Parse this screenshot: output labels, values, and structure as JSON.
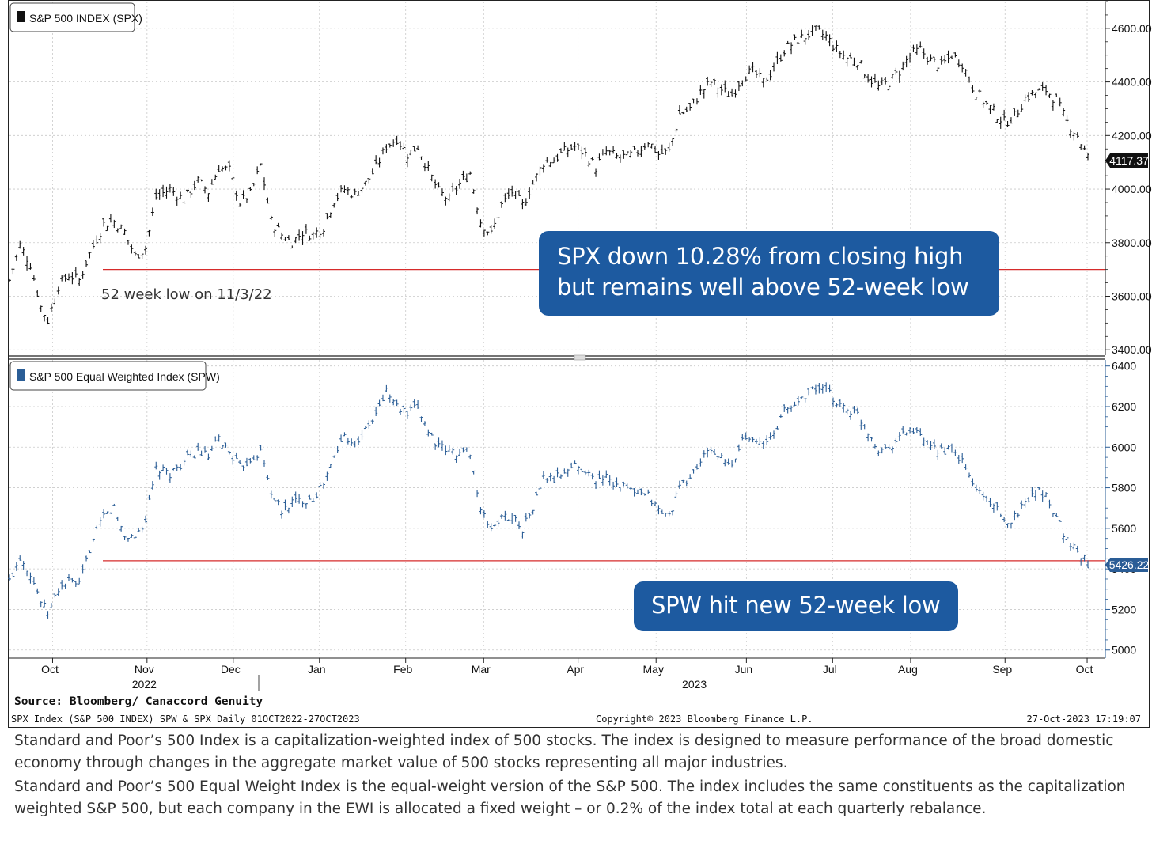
{
  "colors": {
    "spx": "#111111",
    "spw": "#2a5d96",
    "low_line": "#d62b2b",
    "callout": "#1d5aa0"
  },
  "chart_data": [
    {
      "type": "line",
      "title": "S&P 500 INDEX (SPX)",
      "series_color": "#111111",
      "ylim": [
        3380,
        4700
      ],
      "yticks": [
        "3400.00",
        "3600.00",
        "3800.00",
        "4000.00",
        "4200.00",
        "4400.00",
        "4600.00"
      ],
      "ytick_values": [
        3400,
        3600,
        3800,
        4000,
        4200,
        4400,
        4600
      ],
      "last_value": "4117.37",
      "low_line_value": 3700,
      "low_label": "52 week low on 11/3/22",
      "callout": [
        "SPX down 10.28% from closing high",
        "but remains well above 52-week low"
      ],
      "anchors": [
        [
          0,
          3660
        ],
        [
          3,
          3790
        ],
        [
          6,
          3720
        ],
        [
          9,
          3560
        ],
        [
          11,
          3510
        ],
        [
          14,
          3640
        ],
        [
          17,
          3680
        ],
        [
          20,
          3660
        ],
        [
          23,
          3760
        ],
        [
          27,
          3870
        ],
        [
          30,
          3880
        ],
        [
          33,
          3840
        ],
        [
          36,
          3750
        ],
        [
          39,
          3780
        ],
        [
          42,
          3970
        ],
        [
          46,
          4000
        ],
        [
          50,
          3960
        ],
        [
          54,
          4030
        ],
        [
          57,
          3990
        ],
        [
          60,
          4080
        ],
        [
          63,
          4070
        ],
        [
          66,
          3950
        ],
        [
          69,
          3980
        ],
        [
          72,
          4090
        ],
        [
          75,
          3880
        ],
        [
          78,
          3830
        ],
        [
          81,
          3800
        ],
        [
          84,
          3840
        ],
        [
          87,
          3830
        ],
        [
          90,
          3860
        ],
        [
          93,
          3960
        ],
        [
          96,
          4000
        ],
        [
          99,
          3980
        ],
        [
          102,
          4020
        ],
        [
          105,
          4080
        ],
        [
          108,
          4160
        ],
        [
          111,
          4190
        ],
        [
          114,
          4130
        ],
        [
          117,
          4160
        ],
        [
          120,
          4070
        ],
        [
          123,
          3990
        ],
        [
          126,
          3960
        ],
        [
          129,
          4020
        ],
        [
          132,
          4060
        ],
        [
          135,
          3880
        ],
        [
          138,
          3830
        ],
        [
          141,
          3940
        ],
        [
          144,
          3990
        ],
        [
          147,
          3940
        ],
        [
          150,
          4020
        ],
        [
          153,
          4100
        ],
        [
          156,
          4110
        ],
        [
          159,
          4140
        ],
        [
          162,
          4160
        ],
        [
          165,
          4130
        ],
        [
          168,
          4080
        ],
        [
          171,
          4140
        ],
        [
          174,
          4120
        ],
        [
          177,
          4120
        ],
        [
          180,
          4140
        ],
        [
          183,
          4180
        ],
        [
          186,
          4130
        ],
        [
          189,
          4140
        ],
        [
          192,
          4280
        ],
        [
          195,
          4300
        ],
        [
          198,
          4360
        ],
        [
          201,
          4400
        ],
        [
          204,
          4370
        ],
        [
          207,
          4350
        ],
        [
          210,
          4420
        ],
        [
          213,
          4440
        ],
        [
          216,
          4400
        ],
        [
          219,
          4450
        ],
        [
          222,
          4520
        ],
        [
          225,
          4550
        ],
        [
          228,
          4570
        ],
        [
          231,
          4590
        ],
        [
          234,
          4570
        ],
        [
          237,
          4520
        ],
        [
          240,
          4490
        ],
        [
          243,
          4480
        ],
        [
          246,
          4420
        ],
        [
          249,
          4380
        ],
        [
          252,
          4400
        ],
        [
          255,
          4440
        ],
        [
          258,
          4500
        ],
        [
          261,
          4520
        ],
        [
          264,
          4480
        ],
        [
          267,
          4460
        ],
        [
          270,
          4500
        ],
        [
          273,
          4470
        ],
        [
          276,
          4380
        ],
        [
          279,
          4330
        ],
        [
          282,
          4290
        ],
        [
          285,
          4250
        ],
        [
          288,
          4270
        ],
        [
          291,
          4340
        ],
        [
          294,
          4360
        ],
        [
          297,
          4370
        ],
        [
          300,
          4330
        ],
        [
          303,
          4250
        ],
        [
          306,
          4200
        ],
        [
          309,
          4117
        ]
      ]
    },
    {
      "type": "line",
      "title": "S&P 500 Equal Weighted Index (SPW)",
      "series_color": "#2a5d96",
      "ylim": [
        4960,
        6430
      ],
      "yticks": [
        "5000",
        "5200",
        "5400",
        "5600",
        "5800",
        "6000",
        "6200",
        "6400"
      ],
      "ytick_values": [
        5000,
        5200,
        5400,
        5600,
        5800,
        6000,
        6200,
        6400
      ],
      "last_value": "5426.22",
      "low_line_value": 5440,
      "callout": [
        "SPW hit new 52-week low"
      ],
      "anchors": [
        [
          0,
          5340
        ],
        [
          3,
          5460
        ],
        [
          6,
          5380
        ],
        [
          9,
          5240
        ],
        [
          11,
          5180
        ],
        [
          14,
          5300
        ],
        [
          17,
          5340
        ],
        [
          20,
          5320
        ],
        [
          23,
          5500
        ],
        [
          27,
          5660
        ],
        [
          30,
          5700
        ],
        [
          33,
          5560
        ],
        [
          36,
          5560
        ],
        [
          39,
          5640
        ],
        [
          42,
          5890
        ],
        [
          46,
          5870
        ],
        [
          50,
          5930
        ],
        [
          54,
          5980
        ],
        [
          57,
          5950
        ],
        [
          60,
          6040
        ],
        [
          63,
          5980
        ],
        [
          66,
          5900
        ],
        [
          69,
          5940
        ],
        [
          72,
          5980
        ],
        [
          75,
          5780
        ],
        [
          78,
          5680
        ],
        [
          81,
          5730
        ],
        [
          84,
          5740
        ],
        [
          87,
          5750
        ],
        [
          90,
          5820
        ],
        [
          93,
          5950
        ],
        [
          96,
          6060
        ],
        [
          99,
          6020
        ],
        [
          102,
          6080
        ],
        [
          105,
          6160
        ],
        [
          108,
          6280
        ],
        [
          111,
          6200
        ],
        [
          114,
          6160
        ],
        [
          117,
          6200
        ],
        [
          120,
          6080
        ],
        [
          123,
          6000
        ],
        [
          126,
          5980
        ],
        [
          129,
          5970
        ],
        [
          132,
          5980
        ],
        [
          135,
          5680
        ],
        [
          138,
          5600
        ],
        [
          141,
          5650
        ],
        [
          144,
          5660
        ],
        [
          147,
          5600
        ],
        [
          150,
          5700
        ],
        [
          153,
          5850
        ],
        [
          156,
          5840
        ],
        [
          159,
          5880
        ],
        [
          162,
          5910
        ],
        [
          165,
          5890
        ],
        [
          168,
          5820
        ],
        [
          171,
          5870
        ],
        [
          174,
          5810
        ],
        [
          177,
          5800
        ],
        [
          180,
          5760
        ],
        [
          183,
          5760
        ],
        [
          186,
          5690
        ],
        [
          189,
          5660
        ],
        [
          192,
          5800
        ],
        [
          195,
          5850
        ],
        [
          198,
          5930
        ],
        [
          201,
          5990
        ],
        [
          204,
          5940
        ],
        [
          207,
          5900
        ],
        [
          210,
          6040
        ],
        [
          213,
          6060
        ],
        [
          216,
          6000
        ],
        [
          219,
          6070
        ],
        [
          222,
          6180
        ],
        [
          225,
          6210
        ],
        [
          228,
          6260
        ],
        [
          231,
          6290
        ],
        [
          234,
          6280
        ],
        [
          237,
          6220
        ],
        [
          240,
          6190
        ],
        [
          243,
          6160
        ],
        [
          246,
          6080
        ],
        [
          249,
          5990
        ],
        [
          252,
          6000
        ],
        [
          255,
          6050
        ],
        [
          258,
          6090
        ],
        [
          261,
          6050
        ],
        [
          264,
          5990
        ],
        [
          267,
          5990
        ],
        [
          270,
          5980
        ],
        [
          273,
          5930
        ],
        [
          276,
          5820
        ],
        [
          279,
          5760
        ],
        [
          282,
          5720
        ],
        [
          285,
          5620
        ],
        [
          288,
          5660
        ],
        [
          291,
          5730
        ],
        [
          294,
          5790
        ],
        [
          297,
          5760
        ],
        [
          300,
          5660
        ],
        [
          303,
          5540
        ],
        [
          306,
          5490
        ],
        [
          309,
          5426
        ]
      ]
    }
  ],
  "xaxis": {
    "months": [
      {
        "label": "Oct",
        "day": 0
      },
      {
        "label": "Nov",
        "day": 23
      },
      {
        "label": "Dec",
        "day": 44
      },
      {
        "label": "Jan",
        "day": 65
      },
      {
        "label": "Feb",
        "day": 86
      },
      {
        "label": "Mar",
        "day": 105
      },
      {
        "label": "Apr",
        "day": 128
      },
      {
        "label": "May",
        "day": 147
      },
      {
        "label": "Jun",
        "day": 169
      },
      {
        "label": "Jul",
        "day": 190
      },
      {
        "label": "Aug",
        "day": 209
      },
      {
        "label": "Sep",
        "day": 232
      },
      {
        "label": "Oct",
        "day": 252
      }
    ],
    "years": [
      {
        "label": "2022",
        "day": 23
      },
      {
        "label": "2023",
        "day": 157
      }
    ],
    "total_days": 265
  },
  "source": "Source: Bloomberg/ Canaccord Genuity",
  "footer": {
    "left": "SPX Index (S&P 500 INDEX) SPW & SPX  Daily 01OCT2022-27OCT2023",
    "center": "Copyright© 2023 Bloomberg Finance L.P.",
    "right": "27-Oct-2023 17:19:07"
  },
  "notes": [
    "Standard and Poor’s 500 Index is a capitalization-weighted index of 500 stocks. The index is designed to measure performance of the broad domestic economy through changes in the aggregate market value of 500 stocks representing all major industries.",
    "Standard and Poor’s 500 Equal Weight Index is the equal-weight version of the S&P 500. The index includes the same constituents as the capitalization weighted S&P 500, but each company in the EWI is allocated a fixed weight – or 0.2% of the index total at each quarterly rebalance."
  ]
}
